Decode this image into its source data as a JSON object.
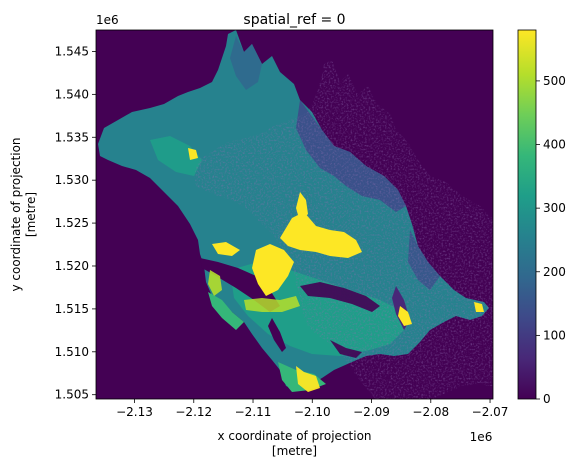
{
  "chart_data": {
    "type": "heatmap",
    "title": "spatial_ref = 0",
    "xlabel_line1": "x coordinate of projection",
    "xlabel_line2": "[metre]",
    "ylabel_line1": "y coordinate of projection",
    "ylabel_line2": "[metre]",
    "x_offset_label": "1e6",
    "y_offset_label": "1e6",
    "xlim": [
      -2.1365,
      -2.0695
    ],
    "ylim": [
      1.5045,
      1.5475
    ],
    "xticks": [
      -2.13,
      -2.12,
      -2.11,
      -2.1,
      -2.09,
      -2.08,
      -2.07
    ],
    "xtick_labels": [
      "−2.13",
      "−2.12",
      "−2.11",
      "−2.10",
      "−2.09",
      "−2.08",
      "−2.07"
    ],
    "yticks": [
      1.505,
      1.51,
      1.515,
      1.52,
      1.525,
      1.53,
      1.535,
      1.54,
      1.545
    ],
    "ytick_labels": [
      "1.505",
      "1.510",
      "1.515",
      "1.520",
      "1.525",
      "1.530",
      "1.535",
      "1.540",
      "1.545"
    ],
    "background_value": 0,
    "colorbar": {
      "colormap": "viridis",
      "vmin": 0,
      "vmax": 580,
      "ticks": [
        0,
        100,
        200,
        300,
        400,
        500
      ],
      "tick_labels": [
        "0",
        "100",
        "200",
        "300",
        "400",
        "500"
      ]
    },
    "colors": {
      "c0": "#440154",
      "c1": "#482878",
      "c2": "#3e4989",
      "c3": "#31688e",
      "c4": "#26828e",
      "c5": "#1f9e89",
      "c6": "#35b779",
      "c7": "#6ece58",
      "c8": "#b5de2b",
      "c9": "#fde725"
    }
  }
}
